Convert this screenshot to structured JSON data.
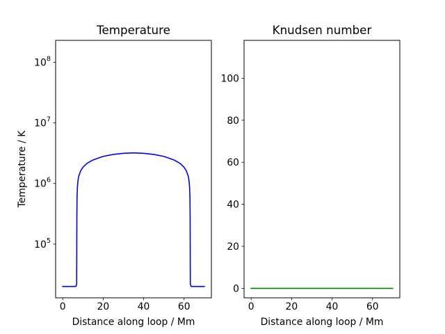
{
  "chart_data": [
    {
      "type": "line",
      "title": "Temperature",
      "xlabel": "Distance along loop / Mm",
      "ylabel": "Temperature / K",
      "yscale": "log",
      "xlim": [
        -3.5,
        73.5
      ],
      "ylim": [
        13000,
        230000000
      ],
      "xticks": [
        0,
        20,
        40,
        60
      ],
      "yticks": [
        {
          "value": 100000,
          "base": "10",
          "exp": "5"
        },
        {
          "value": 1000000,
          "base": "10",
          "exp": "6"
        },
        {
          "value": 10000000,
          "base": "10",
          "exp": "7"
        },
        {
          "value": 100000000,
          "base": "10",
          "exp": "8"
        }
      ],
      "grid": false,
      "series": [
        {
          "color": "#0000ff",
          "x": [
            0,
            6.5,
            6.9,
            7.0,
            7.1,
            7.3,
            7.6,
            8.0,
            9.0,
            10.0,
            12.0,
            15.0,
            20.0,
            25.0,
            30.0,
            35.0,
            40.0,
            45.0,
            50.0,
            55.0,
            58.0,
            60.0,
            61.0,
            62.0,
            62.4,
            62.7,
            62.9,
            63.0,
            63.1,
            63.5,
            70.0
          ],
          "y": [
            20000,
            20000,
            22000,
            300000,
            600000,
            900000,
            1150000,
            1350000,
            1650000,
            1850000,
            2150000,
            2450000,
            2800000,
            3020000,
            3150000,
            3200000,
            3150000,
            3020000,
            2800000,
            2450000,
            2150000,
            1850000,
            1650000,
            1350000,
            1150000,
            900000,
            600000,
            300000,
            22000,
            20000,
            20000
          ]
        }
      ]
    },
    {
      "type": "line",
      "title": "Knudsen number",
      "xlabel": "Distance along loop / Mm",
      "ylabel": "",
      "xlim": [
        -3.5,
        73.5
      ],
      "ylim": [
        -4.5,
        118
      ],
      "xticks": [
        0,
        20,
        40,
        60
      ],
      "yticks": [
        0,
        20,
        40,
        60,
        80,
        100
      ],
      "grid": false,
      "series": [
        {
          "color": "#008000",
          "x": [
            0,
            70
          ],
          "y": [
            0,
            0
          ]
        }
      ]
    }
  ]
}
